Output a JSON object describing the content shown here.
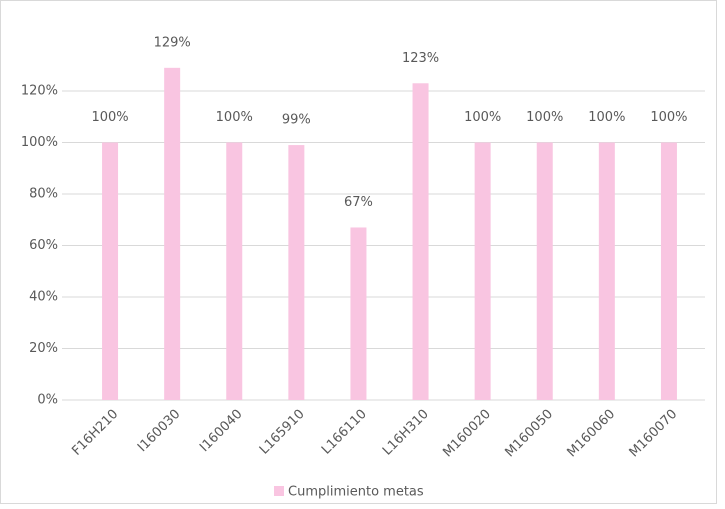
{
  "chart_data": {
    "type": "bar",
    "categories": [
      "F16H210",
      "I160030",
      "I160040",
      "L165910",
      "L166110",
      "L16H310",
      "M160020",
      "M160050",
      "M160060",
      "M160070"
    ],
    "series": [
      {
        "name": "Cumplimiento metas",
        "color": "#f9c5e1",
        "values": [
          100,
          129,
          100,
          99,
          67,
          123,
          100,
          100,
          100,
          100
        ],
        "value_labels": [
          "100%",
          "129%",
          "100%",
          "99%",
          "67%",
          "123%",
          "100%",
          "100%",
          "100%",
          "100%"
        ]
      }
    ],
    "ylim": [
      0,
      140
    ],
    "yticks": [
      {
        "value": 0,
        "label": "0%"
      },
      {
        "value": 20,
        "label": "20%"
      },
      {
        "value": 40,
        "label": "40%"
      },
      {
        "value": 60,
        "label": "60%"
      },
      {
        "value": 80,
        "label": "80%"
      },
      {
        "value": 100,
        "label": "100%"
      },
      {
        "value": 120,
        "label": "120%"
      }
    ],
    "grid": true,
    "legend": "bottom"
  }
}
